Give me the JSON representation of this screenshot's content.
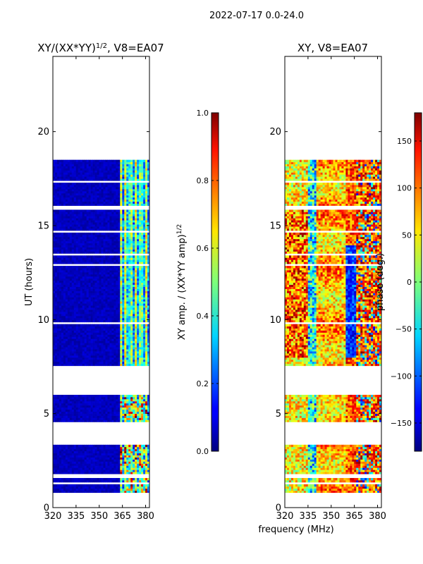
{
  "suptitle": "2022-07-17 0.0-24.0",
  "xlabel": "frequency (MHz)",
  "chart_data": [
    {
      "type": "heatmap",
      "title": "XY/(XX*YY)^1/2, V8=EA07",
      "title_main": "XY/(XX*YY)",
      "title_exp": "1/2",
      "title_tail": ", V8=EA07",
      "ylabel": "UT (hours)",
      "xlim": [
        320,
        382.5
      ],
      "ylim": [
        0,
        24
      ],
      "xticks": [
        320,
        335,
        350,
        365,
        380
      ],
      "yticks": [
        0,
        5,
        10,
        15,
        20
      ],
      "data_time_range": [
        0.8,
        18.5
      ],
      "gaps_hours": [
        [
          3.3,
          4.1
        ],
        [
          4.15,
          4.6
        ],
        [
          6.0,
          7.6
        ]
      ],
      "band_start_mhz": 363,
      "colorbar": {
        "label": "XY amp. / (XX*YY amp)^1/2",
        "label_main": "XY amp. / (XX*YY amp)",
        "label_exp": "1/2",
        "min": 0.0,
        "max": 1.0,
        "ticks": [
          0.0,
          0.2,
          0.4,
          0.6,
          0.8,
          1.0
        ],
        "tick_labels": [
          "0.0",
          "0.2",
          "0.4",
          "0.6",
          "0.8",
          "1.0"
        ]
      }
    },
    {
      "type": "heatmap",
      "title": "XY, V8=EA07",
      "ylabel": "",
      "xlim": [
        320,
        382.5
      ],
      "ylim": [
        0,
        24
      ],
      "xticks": [
        320,
        335,
        350,
        365,
        380
      ],
      "yticks": [
        0,
        5,
        10,
        15,
        20
      ],
      "data_time_range": [
        0.8,
        18.5
      ],
      "gaps_hours": [
        [
          3.3,
          4.1
        ],
        [
          4.15,
          4.6
        ],
        [
          6.0,
          7.6
        ]
      ],
      "colorbar": {
        "label": "phase (deg.)",
        "min": -180,
        "max": 180,
        "ticks": [
          150,
          100,
          50,
          0,
          -50,
          -100,
          -150
        ],
        "tick_labels": [
          "150",
          "100",
          "50",
          "0",
          "−50",
          "−100",
          "−150"
        ]
      }
    }
  ]
}
